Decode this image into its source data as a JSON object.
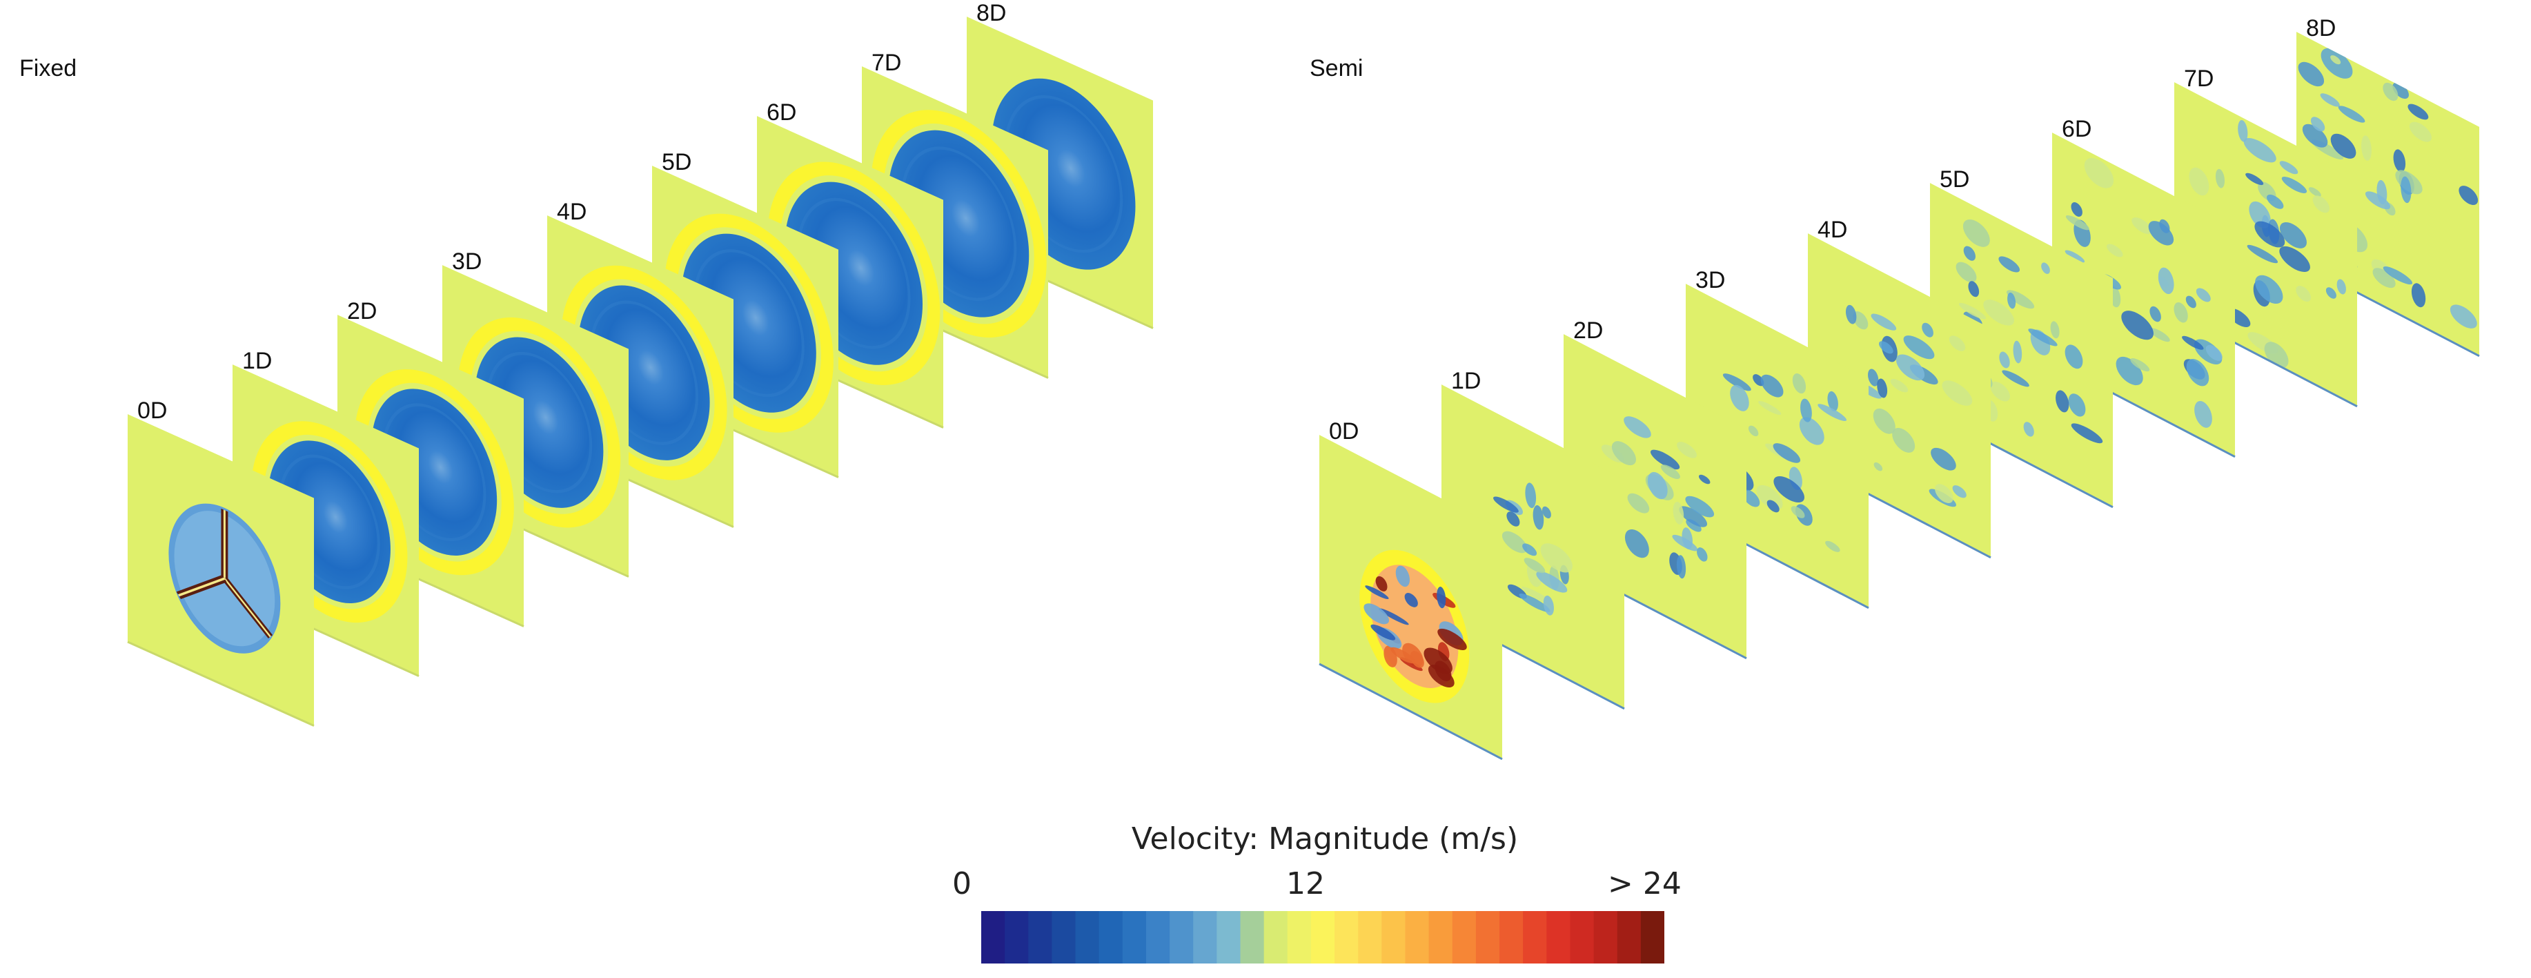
{
  "groups": [
    {
      "title": "Fixed",
      "planes": [
        "0D",
        "1D",
        "2D",
        "3D",
        "4D",
        "5D",
        "6D",
        "7D",
        "8D"
      ],
      "wake": "fixed"
    },
    {
      "title": "Semi",
      "planes": [
        "0D",
        "1D",
        "2D",
        "3D",
        "4D",
        "5D",
        "6D",
        "7D",
        "8D"
      ],
      "wake": "semi"
    }
  ],
  "colorbar": {
    "title": "Velocity: Magnitude (m/s)",
    "ticks": [
      {
        "label": "0",
        "value": 0
      },
      {
        "label": "12",
        "value": 12
      },
      {
        "label": "> 24",
        "value": 24
      }
    ],
    "range": [
      0,
      24
    ],
    "colors": [
      "#1f1e85",
      "#1c2b8f",
      "#1b3a97",
      "#1b4aa0",
      "#1d5aab",
      "#2066b6",
      "#2a73bf",
      "#3b82c7",
      "#4f93cc",
      "#66a6d0",
      "#7cbad0",
      "#a5cf9a",
      "#d9eb72",
      "#eef266",
      "#fbf35b",
      "#fde45a",
      "#fdd453",
      "#fcc34a",
      "#fbb043",
      "#f99c3b",
      "#f68636",
      "#f27132",
      "#ed5c2e",
      "#e6452a",
      "#dd3326",
      "#cf2a22",
      "#bd241c",
      "#a21e15",
      "#7a1a0d"
    ],
    "field_colors": {
      "background": "#dff06b",
      "ring": "#fbf530",
      "core": "#2a72c6"
    }
  }
}
